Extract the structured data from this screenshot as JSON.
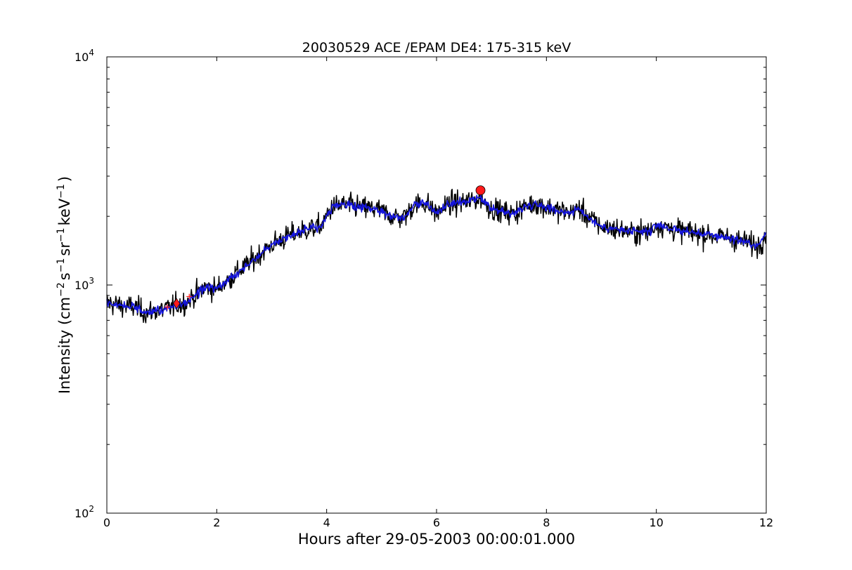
{
  "chart_data": {
    "type": "line",
    "title": "20030529 ACE /EPAM DE4: 175-315 keV",
    "xlabel": "Hours after 29-05-2003 00:00:01.000",
    "ylabel_parts": {
      "prefix": "Intensity (cm",
      "exp1": "−2",
      "mid1": "s",
      "exp2": "−1",
      "mid2": "sr",
      "exp3": "−1",
      "mid3": "keV",
      "exp4": "−1",
      "suffix": ")"
    },
    "xlim": [
      0,
      12
    ],
    "ylim": [
      100,
      10000
    ],
    "yscale": "log",
    "grid": false,
    "x_ticks": [
      "0",
      "2",
      "4",
      "6",
      "8",
      "10",
      "12"
    ],
    "y_ticks": [
      {
        "base": "10",
        "exp": "2"
      },
      {
        "base": "10",
        "exp": "3"
      },
      {
        "base": "10",
        "exp": "4"
      }
    ],
    "colors": {
      "raw": "#000000",
      "smoothed": "#1515dd",
      "marker": "#ff1a1a"
    },
    "series": [
      {
        "style": "raw-noisy",
        "color": "#000000",
        "x": [
          0,
          0.25,
          0.5,
          0.7,
          0.9,
          1.1,
          1.3,
          1.45,
          1.6,
          1.8,
          2.0,
          2.2,
          2.4,
          2.6,
          2.8,
          3.0,
          3.3,
          3.6,
          3.9,
          4.1,
          4.3,
          4.6,
          4.9,
          5.2,
          5.4,
          5.6,
          5.8,
          6.0,
          6.2,
          6.4,
          6.6,
          6.8,
          7.0,
          7.2,
          7.4,
          7.6,
          7.8,
          8.0,
          8.2,
          8.4,
          8.6,
          8.8,
          9.0,
          9.3,
          9.6,
          9.9,
          10.0,
          10.2,
          10.5,
          10.8,
          11.1,
          11.4,
          11.7,
          11.85,
          12.0
        ],
        "y": [
          840,
          810,
          800,
          760,
          770,
          790,
          820,
          840,
          900,
          980,
          960,
          1050,
          1150,
          1250,
          1380,
          1500,
          1640,
          1740,
          1810,
          2200,
          2250,
          2200,
          2150,
          2000,
          1980,
          2250,
          2300,
          2050,
          2250,
          2300,
          2320,
          2400,
          2150,
          2100,
          2050,
          2200,
          2280,
          2200,
          2120,
          2080,
          2150,
          1950,
          1800,
          1750,
          1700,
          1720,
          1850,
          1780,
          1720,
          1680,
          1640,
          1600,
          1520,
          1480,
          1700
        ]
      },
      {
        "style": "smoothed",
        "color": "#1515dd",
        "x": [
          0,
          0.25,
          0.5,
          0.7,
          0.9,
          1.1,
          1.3,
          1.45,
          1.6,
          1.8,
          2.0,
          2.2,
          2.4,
          2.6,
          2.8,
          3.0,
          3.3,
          3.6,
          3.9,
          4.1,
          4.3,
          4.6,
          4.9,
          5.2,
          5.4,
          5.6,
          5.8,
          6.0,
          6.2,
          6.4,
          6.6,
          6.8,
          7.0,
          7.2,
          7.4,
          7.6,
          7.8,
          8.0,
          8.2,
          8.4,
          8.6,
          8.8,
          9.0,
          9.3,
          9.6,
          9.9,
          10.0,
          10.2,
          10.5,
          10.8,
          11.1,
          11.4,
          11.7,
          11.85,
          12.0
        ],
        "y": [
          840,
          810,
          800,
          760,
          770,
          790,
          820,
          840,
          900,
          980,
          960,
          1050,
          1150,
          1250,
          1380,
          1500,
          1640,
          1740,
          1810,
          2200,
          2250,
          2200,
          2150,
          2000,
          1980,
          2250,
          2300,
          2050,
          2250,
          2300,
          2320,
          2400,
          2150,
          2100,
          2050,
          2200,
          2280,
          2200,
          2120,
          2080,
          2150,
          1950,
          1800,
          1750,
          1700,
          1720,
          1850,
          1780,
          1720,
          1680,
          1640,
          1600,
          1520,
          1480,
          1700
        ]
      }
    ],
    "markers": [
      {
        "shape": "diamond",
        "x": 1.27,
        "y": 830,
        "color": "#ff1a1a"
      },
      {
        "shape": "circle",
        "x": 6.8,
        "y": 2600,
        "color": "#ff1a1a"
      },
      {
        "shape": "plus",
        "x": 1.1,
        "y": 800,
        "color": "#ff1a1a"
      },
      {
        "shape": "plus",
        "x": 1.5,
        "y": 890,
        "color": "#ff1a1a"
      }
    ]
  }
}
